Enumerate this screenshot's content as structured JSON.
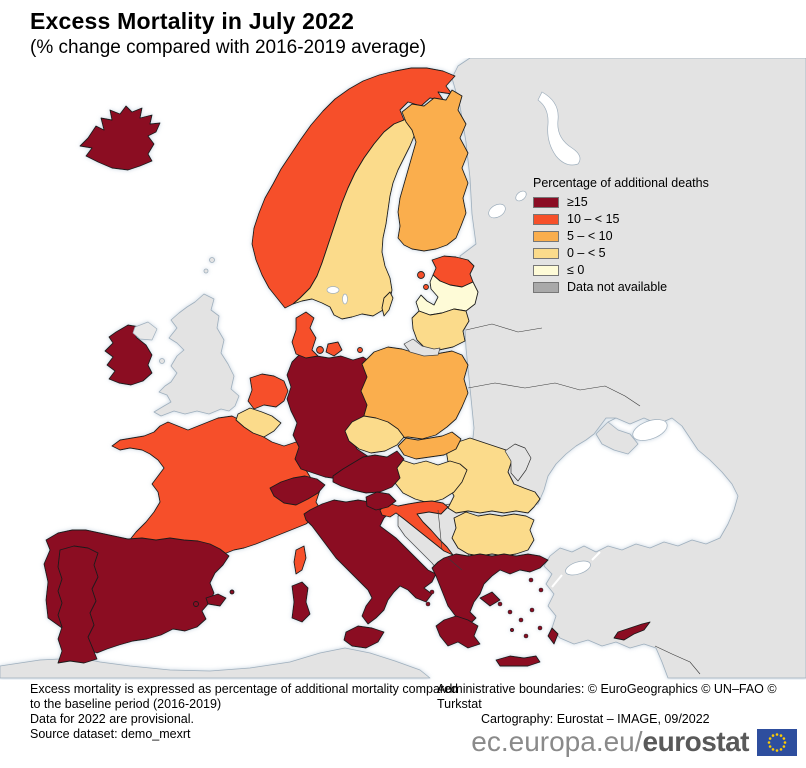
{
  "header": {
    "title": "Excess Mortality in July 2022",
    "subtitle": "(% change compared with 2016-2019 average)"
  },
  "legend": {
    "title": "Percentage of additional deaths",
    "items": [
      {
        "key": "ge15",
        "label": "≥15",
        "color": "#8B0D24"
      },
      {
        "key": "c10_15",
        "label": "10 – < 15",
        "color": "#F6502A"
      },
      {
        "key": "c5_10",
        "label": "5 – < 10",
        "color": "#FAAE4D"
      },
      {
        "key": "c0_5",
        "label": "0 – < 5",
        "color": "#FBDB8B"
      },
      {
        "key": "le0",
        "label": "≤ 0",
        "color": "#FEFBD7"
      },
      {
        "key": "na",
        "label": "Data not available",
        "color": "#A9A9A9"
      }
    ]
  },
  "map": {
    "colors": {
      "sea": "#FFFFFF",
      "non_eu_land": "#E3E3E3",
      "coastline": "#9FAFBD",
      "eu_border": "#1A1A1A",
      "coast_glow": "#BCCCDA"
    },
    "countries": {
      "IS": "ge15",
      "IE": "ge15",
      "PT": "ge15",
      "ES": "ge15",
      "DE": "ge15",
      "CH": "ge15",
      "AT": "ge15",
      "IT": "ge15",
      "SI": "ge15",
      "GR": "ge15",
      "CY": "ge15",
      "NO": "c10_15",
      "DK": "c10_15",
      "EE": "c10_15",
      "NL": "c10_15",
      "FR": "c10_15",
      "HR": "c10_15",
      "FI": "c5_10",
      "PL": "c5_10",
      "SK": "c5_10",
      "SE": "c0_5",
      "LT": "c0_5",
      "BE": "c0_5",
      "CZ": "c0_5",
      "HU": "c0_5",
      "RO": "c0_5",
      "BG": "c0_5",
      "LV": "le0",
      "UK": "noneu",
      "RU": "noneu",
      "BALKANS": "noneu",
      "KGD": "noneu",
      "MD": "noneu",
      "AFRICA": "noneu",
      "NI": "noneu",
      "ISLES": "noneu"
    }
  },
  "footnotes": {
    "line1": "Excess mortality is expressed as percentage of additional mortality compared",
    "line2": "to the baseline period (2016-2019)",
    "line3": "Data for 2022 are provisional.",
    "line4": "Source dataset: demo_mexrt"
  },
  "credits": {
    "line1": "Administrative boundaries: © EuroGeographics © UN–FAO © Turkstat",
    "line2": "Cartography: Eurostat – IMAGE, 09/2022"
  },
  "banner": {
    "url_prefix": "ec.europa.eu/",
    "brand": "eurostat",
    "flag_blue": "#2E4E9E",
    "flag_yellow": "#FFCC00"
  }
}
